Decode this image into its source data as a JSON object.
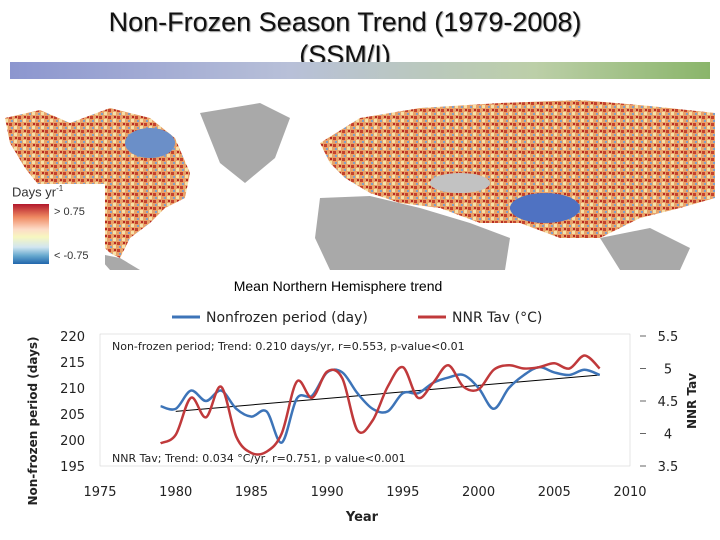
{
  "slide": {
    "title_line1": "Non-Frozen Season Trend (1979-2008)",
    "title_line2": "(SSM/I)"
  },
  "map": {
    "legend_title": "Days yr",
    "legend_title_sup": "-1",
    "legend_high": "> 0.75",
    "legend_low": "< -0.75",
    "land_color": "#a9a9a9"
  },
  "chart_heading": "Mean Northern Hemisphere trend",
  "chart_data": {
    "type": "line",
    "legend": [
      {
        "label": "Nonfrozen period (day)",
        "color": "#3d74b8"
      },
      {
        "label": "NNR Tav (°C)",
        "color": "#c0393b"
      }
    ],
    "annotation_top": "Non-frozen period; Trend: 0.210 days/yr, r=0.553, p-value<0.01",
    "annotation_bottom": "NNR Tav; Trend: 0.034 °C/yr, r=0.751, p value<0.001",
    "xlabel": "Year",
    "ylabel_left": "Non-frozen period (days)",
    "ylabel_right": "NNR Tav",
    "xlim": [
      1975,
      2010
    ],
    "x_ticks": [
      1975,
      1980,
      1985,
      1990,
      1995,
      2000,
      2005,
      2010
    ],
    "y_left_lim": [
      195,
      220
    ],
    "y_left_ticks": [
      195,
      200,
      205,
      210,
      215,
      220
    ],
    "y_right_lim": [
      3.5,
      5.5
    ],
    "y_right_ticks": [
      3.5,
      4,
      4.5,
      5,
      5.5
    ],
    "x": [
      1979,
      1980,
      1981,
      1982,
      1983,
      1984,
      1985,
      1986,
      1987,
      1988,
      1989,
      1990,
      1991,
      1992,
      1993,
      1994,
      1995,
      1996,
      1997,
      1998,
      1999,
      2000,
      2001,
      2002,
      2003,
      2004,
      2005,
      2006,
      2007,
      2008
    ],
    "series": [
      {
        "name": "Nonfrozen period (day)",
        "axis": "left",
        "color": "#3d74b8",
        "values": [
          206.5,
          206.0,
          209.5,
          207.5,
          209.5,
          206.0,
          204.5,
          205.5,
          199.5,
          208.0,
          208.5,
          213.0,
          213.0,
          209.0,
          206.0,
          205.5,
          209.0,
          209.0,
          211.0,
          212.0,
          212.5,
          210.0,
          206.0,
          210.0,
          212.5,
          214.0,
          213.0,
          212.5,
          213.5,
          212.5
        ]
      },
      {
        "name": "NNR Tav (°C)",
        "axis": "right",
        "color": "#c0393b",
        "values": [
          3.85,
          3.98,
          4.55,
          4.25,
          4.72,
          3.95,
          3.7,
          3.72,
          4.0,
          4.8,
          4.55,
          4.95,
          4.85,
          4.05,
          4.2,
          4.72,
          5.02,
          4.55,
          4.78,
          5.05,
          4.72,
          4.68,
          4.98,
          5.05,
          5.0,
          5.02,
          5.08,
          5.0,
          5.2,
          5.0
        ]
      },
      {
        "name": "",
        "axis": "left",
        "color": "#000000",
        "values_endpoints": {
          "x": [
            1980,
            2008
          ],
          "y": [
            205.5,
            212.5
          ]
        }
      }
    ]
  }
}
